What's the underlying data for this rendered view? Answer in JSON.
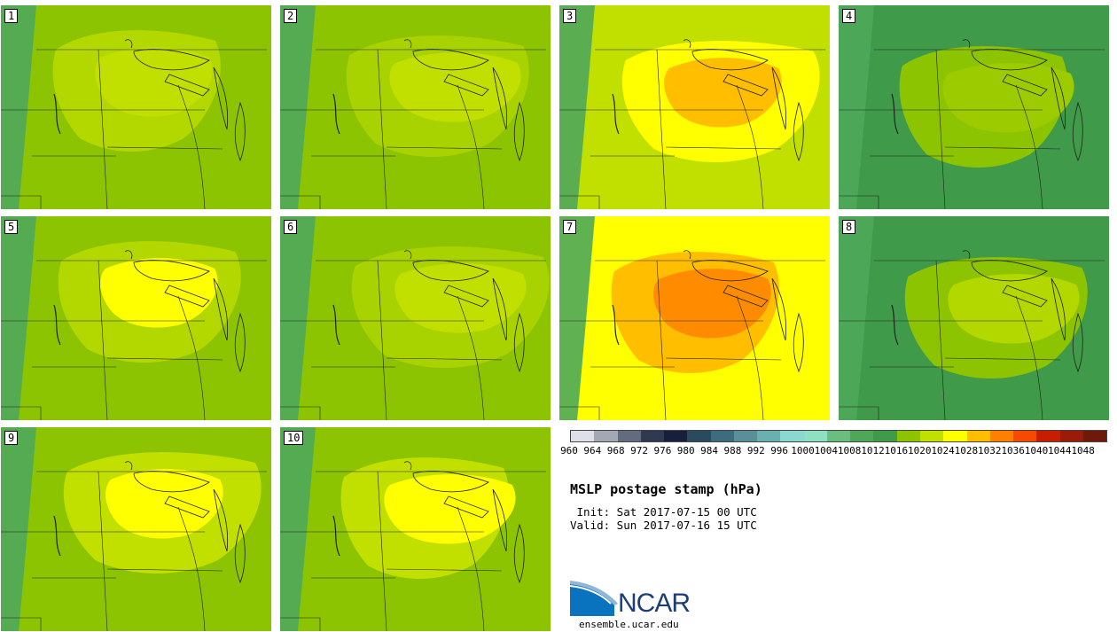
{
  "panels": [
    {
      "label": "1",
      "bg": "#8dc401",
      "inner": "#b3d800",
      "core": "#c2e000",
      "hot": null
    },
    {
      "label": "2",
      "bg": "#8dc401",
      "inner": "#a9d300",
      "core": "#c2e000",
      "hot": null
    },
    {
      "label": "3",
      "bg": "#c2e000",
      "inner": "#ffff00",
      "core": "#ffbf00",
      "hot": null
    },
    {
      "label": "4",
      "bg": "#3f9a49",
      "inner": "#8dc401",
      "core": "#9ccb00",
      "hot": null
    },
    {
      "label": "5",
      "bg": "#8dc401",
      "inner": "#b3d800",
      "core": "#ffff00",
      "hot": null
    },
    {
      "label": "6",
      "bg": "#8dc401",
      "inner": "#a9d300",
      "core": "#c2e000",
      "hot": null
    },
    {
      "label": "7",
      "bg": "#ffff00",
      "inner": "#ffbf00",
      "core": "#ff8c00",
      "hot": null
    },
    {
      "label": "8",
      "bg": "#3f9a49",
      "inner": "#8dc401",
      "core": "#b3d800",
      "hot": null
    },
    {
      "label": "9",
      "bg": "#8dc401",
      "inner": "#c2e000",
      "core": "#ffff00",
      "hot": null
    },
    {
      "label": "10",
      "bg": "#8dc401",
      "inner": "#c2e000",
      "core": "#ffff00",
      "hot": null
    }
  ],
  "colorbar": {
    "colors": [
      "#dde0e8",
      "#a3a8b4",
      "#636b80",
      "#2f3a52",
      "#16203a",
      "#2a4a5e",
      "#3f6b80",
      "#5a8f9a",
      "#6ab0b0",
      "#8ad8d0",
      "#8ee0c0",
      "#6abf80",
      "#4fa85a",
      "#3f9a49",
      "#8dc401",
      "#c2e000",
      "#ffff00",
      "#ffbf00",
      "#ff8000",
      "#f54a00",
      "#c81e00",
      "#9c1a0a",
      "#6e1a0a"
    ],
    "labels": [
      "960",
      "964",
      "968",
      "972",
      "976",
      "980",
      "984",
      "988",
      "992",
      "996",
      "1000",
      "1004",
      "1008",
      "1012",
      "1016",
      "1020",
      "1024",
      "1028",
      "1032",
      "1036",
      "1040",
      "1044",
      "1048"
    ]
  },
  "title": "MSLP postage stamp (hPa)",
  "init": " Init: Sat 2017-07-15 00 UTC",
  "valid": "Valid: Sun 2017-07-16 15 UTC",
  "logo": {
    "text": "NCAR",
    "url": "ensemble.ucar.edu"
  }
}
